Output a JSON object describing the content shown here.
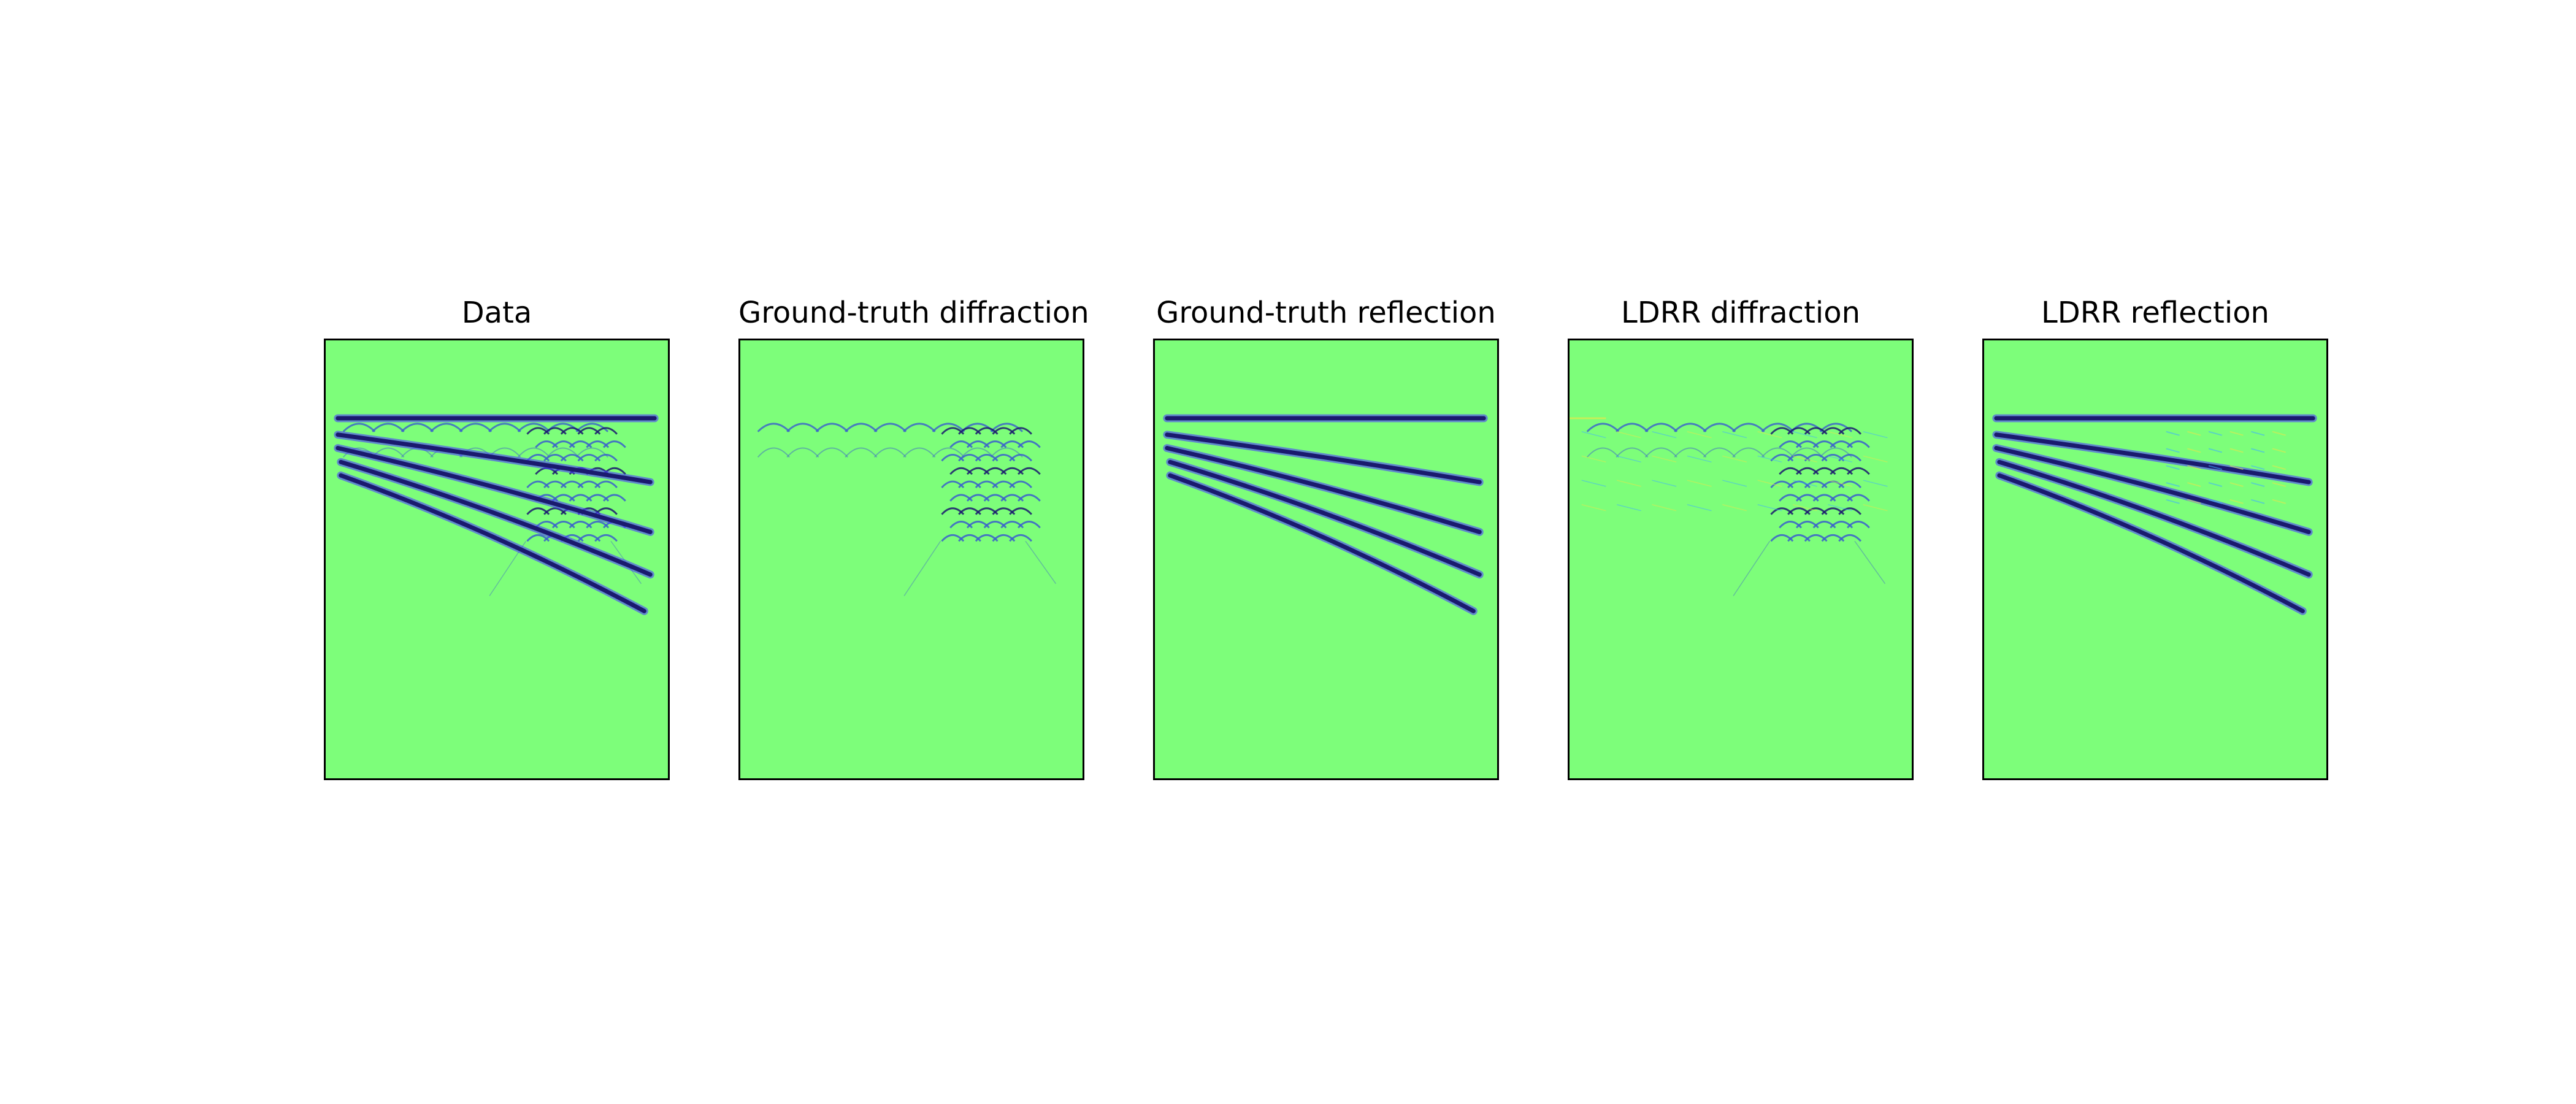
{
  "figure": {
    "panels": [
      {
        "title": "Data",
        "show_diffraction": true,
        "show_reflection": true,
        "artifacts": false
      },
      {
        "title": "Ground-truth diffraction",
        "show_diffraction": true,
        "show_reflection": false,
        "artifacts": false
      },
      {
        "title": "Ground-truth reflection",
        "show_diffraction": false,
        "show_reflection": true,
        "artifacts": false
      },
      {
        "title": "LDRR diffraction",
        "show_diffraction": true,
        "show_reflection": false,
        "artifacts": true
      },
      {
        "title": "LDRR reflection",
        "show_diffraction": false,
        "show_reflection": true,
        "artifacts": true
      }
    ],
    "colors": {
      "background": "#7dfe7a",
      "event_dark": "#1a1a6e",
      "event_light": "#4b3cff",
      "diffraction": "#3a5fcd",
      "artifact_warm": "#e6e84a",
      "artifact_cool": "#3fb0ff"
    }
  }
}
